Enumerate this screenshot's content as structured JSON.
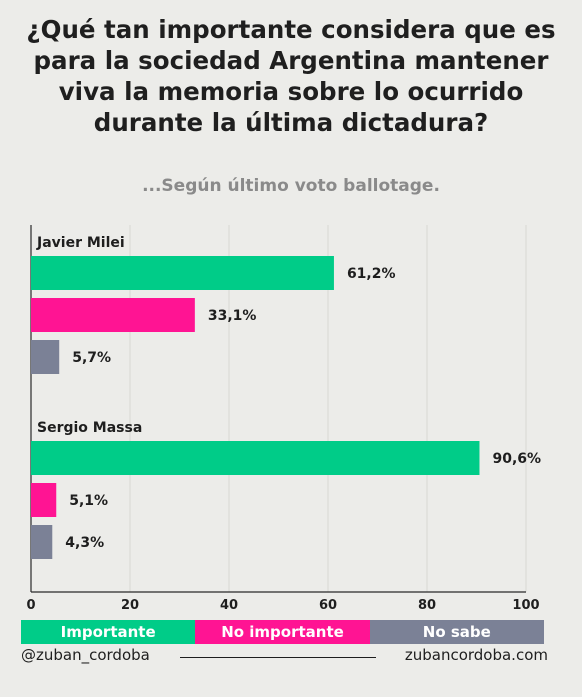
{
  "header": {
    "title_lines": [
      "¿Qué tan importante considera que es",
      "para la sociedad Argentina mantener",
      "viva la memoria sobre lo ocurrido",
      "durante la última dictadura?"
    ],
    "subtitle": "...Según último voto ballotage."
  },
  "chart_data": {
    "type": "bar",
    "orientation": "horizontal",
    "groups": [
      "Javier Milei",
      "Sergio Massa"
    ],
    "series": [
      {
        "name": "Importante",
        "color": "#00cc88",
        "values": [
          61.2,
          90.6
        ],
        "labels": [
          "61,2%",
          "90,6%"
        ]
      },
      {
        "name": "No importante",
        "color": "#ff1493",
        "values": [
          33.1,
          5.1
        ],
        "labels": [
          "33,1%",
          "5,1%"
        ]
      },
      {
        "name": "No sabe",
        "color": "#7b8196",
        "values": [
          5.7,
          4.3
        ],
        "labels": [
          "5,7%",
          "4,3%"
        ]
      }
    ],
    "xlim": [
      0,
      100
    ],
    "xticks": [
      0,
      20,
      40,
      60,
      80,
      100
    ],
    "grid": true,
    "legend_position": "bottom"
  },
  "legend": [
    {
      "label": "Importante",
      "color": "#00cc88"
    },
    {
      "label": "No importante",
      "color": "#ff1493"
    },
    {
      "label": "No sabe",
      "color": "#7b8196"
    }
  ],
  "footer": {
    "handle": "@zuban_cordoba",
    "website": "zubancordoba.com"
  }
}
